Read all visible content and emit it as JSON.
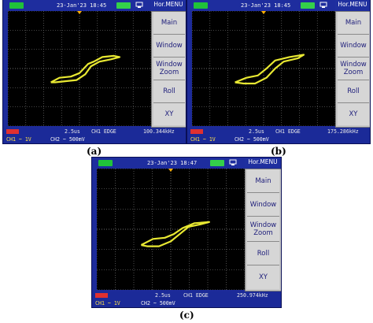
{
  "panels": [
    {
      "id": "a",
      "datetime": "23-Jan'23 18:45",
      "menu_title": "Hor.MENU",
      "menu_items": [
        "Main",
        "Window",
        "Window Zoom",
        "Roll",
        "XY"
      ],
      "timebase": "2.5us",
      "trigger": "CH1  EDGE",
      "frequency": "100.344kHz",
      "ch1": "CH1 ~ 1V",
      "ch2": "CH2 ~ 500mV",
      "caption": "(a)"
    },
    {
      "id": "b",
      "datetime": "23-Jan'23 18:45",
      "menu_title": "Hor.MENU",
      "menu_items": [
        "Main",
        "Window",
        "Window Zoom",
        "Roll",
        "XY"
      ],
      "timebase": "2.5us",
      "trigger": "CH1  EDGE",
      "frequency": "175.286kHz",
      "ch1": "CH1 ~ 1V",
      "ch2": "CH2 ~ 500mV",
      "caption": "(b)"
    },
    {
      "id": "c",
      "datetime": "23-Jan'23 18:47",
      "menu_title": "Hor.MENU",
      "menu_items": [
        "Main",
        "Window",
        "Window Zoom",
        "Roll",
        "XY"
      ],
      "timebase": "2.5us",
      "trigger": "CH1  EDGE",
      "frequency": "250.974kHz",
      "ch1": "CH1 ~ 1V",
      "ch2": "CH2 ~ 500mV",
      "caption": "(c)"
    }
  ],
  "colors": {
    "trace": "#e8e832",
    "grid": "#6c6c6c",
    "frame": "#1d2b9a",
    "menu": "#c8c8c8"
  }
}
